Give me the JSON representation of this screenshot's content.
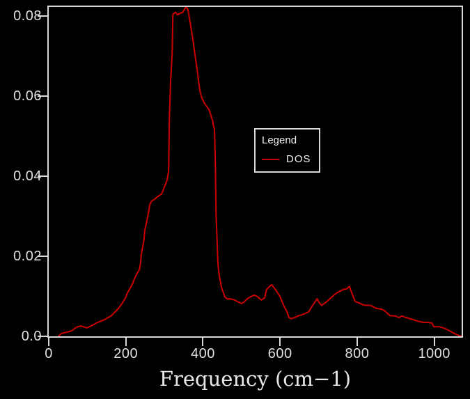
{
  "figure": {
    "background_color": "#000000",
    "frame_color": "#d9d9d9",
    "text_color": "#e0e0e0"
  },
  "chart_data": {
    "type": "line",
    "title": "",
    "xlabel": "Frequency (cm−1)",
    "ylabel": "",
    "xlim": [
      0,
      1071
    ],
    "ylim": [
      0,
      0.0823
    ],
    "grid": false,
    "x_ticks": [
      {
        "value": 0,
        "label": "0"
      },
      {
        "value": 200,
        "label": "200"
      },
      {
        "value": 400,
        "label": "400"
      },
      {
        "value": 600,
        "label": "600"
      },
      {
        "value": 800,
        "label": "800"
      },
      {
        "value": 1000,
        "label": "1000"
      }
    ],
    "y_ticks": [
      {
        "value": 0.0,
        "label": "0.0"
      },
      {
        "value": 0.02,
        "label": "0.02"
      },
      {
        "value": 0.04,
        "label": "0.04"
      },
      {
        "value": 0.06,
        "label": "0.06"
      },
      {
        "value": 0.08,
        "label": "0.08"
      }
    ],
    "legend": {
      "title": "Legend",
      "position": "center",
      "entries": [
        {
          "label": "DOS",
          "color": "#cc0000"
        }
      ]
    },
    "series": [
      {
        "name": "DOS",
        "color": "#cc0000",
        "points": [
          [
            25,
            0
          ],
          [
            33,
            0.0007
          ],
          [
            45,
            0.001
          ],
          [
            60,
            0.0014
          ],
          [
            72,
            0.0023
          ],
          [
            83,
            0.0026
          ],
          [
            90,
            0.0024
          ],
          [
            99,
            0.0021
          ],
          [
            110,
            0.0026
          ],
          [
            123,
            0.0033
          ],
          [
            135,
            0.0038
          ],
          [
            145,
            0.0042
          ],
          [
            154,
            0.0047
          ],
          [
            163,
            0.0052
          ],
          [
            172,
            0.0061
          ],
          [
            181,
            0.007
          ],
          [
            190,
            0.0082
          ],
          [
            199,
            0.0096
          ],
          [
            204,
            0.0108
          ],
          [
            211,
            0.012
          ],
          [
            217,
            0.0131
          ],
          [
            222,
            0.0143
          ],
          [
            229,
            0.0157
          ],
          [
            235,
            0.0166
          ],
          [
            238,
            0.0183
          ],
          [
            240,
            0.0204
          ],
          [
            244,
            0.0225
          ],
          [
            247,
            0.0242
          ],
          [
            249,
            0.0265
          ],
          [
            253,
            0.0282
          ],
          [
            257,
            0.03
          ],
          [
            262,
            0.0329
          ],
          [
            267,
            0.0338
          ],
          [
            275,
            0.0343
          ],
          [
            284,
            0.035
          ],
          [
            293,
            0.0356
          ],
          [
            302,
            0.0378
          ],
          [
            307,
            0.039
          ],
          [
            311,
            0.0413
          ],
          [
            313,
            0.0549
          ],
          [
            316,
            0.0636
          ],
          [
            320,
            0.0706
          ],
          [
            322,
            0.0805
          ],
          [
            329,
            0.081
          ],
          [
            334,
            0.0803
          ],
          [
            340,
            0.0807
          ],
          [
            347,
            0.0809
          ],
          [
            356,
            0.0823
          ],
          [
            361,
            0.0817
          ],
          [
            367,
            0.0783
          ],
          [
            374,
            0.0741
          ],
          [
            379,
            0.0706
          ],
          [
            385,
            0.0666
          ],
          [
            392,
            0.0614
          ],
          [
            397,
            0.0596
          ],
          [
            403,
            0.0584
          ],
          [
            416,
            0.0566
          ],
          [
            425,
            0.0539
          ],
          [
            430,
            0.0514
          ],
          [
            432,
            0.0439
          ],
          [
            434,
            0.0305
          ],
          [
            439,
            0.0178
          ],
          [
            443,
            0.0148
          ],
          [
            448,
            0.0122
          ],
          [
            457,
            0.0098
          ],
          [
            464,
            0.0093
          ],
          [
            470,
            0.0094
          ],
          [
            482,
            0.0091
          ],
          [
            493,
            0.0085
          ],
          [
            500,
            0.0082
          ],
          [
            506,
            0.0085
          ],
          [
            515,
            0.0094
          ],
          [
            524,
            0.0099
          ],
          [
            533,
            0.0103
          ],
          [
            542,
            0.0099
          ],
          [
            551,
            0.0091
          ],
          [
            560,
            0.0096
          ],
          [
            565,
            0.0117
          ],
          [
            573,
            0.0125
          ],
          [
            578,
            0.0129
          ],
          [
            584,
            0.0122
          ],
          [
            591,
            0.0113
          ],
          [
            600,
            0.0099
          ],
          [
            609,
            0.0078
          ],
          [
            618,
            0.0061
          ],
          [
            623,
            0.0047
          ],
          [
            629,
            0.0044
          ],
          [
            638,
            0.0047
          ],
          [
            650,
            0.0052
          ],
          [
            663,
            0.0056
          ],
          [
            674,
            0.0061
          ],
          [
            683,
            0.0075
          ],
          [
            690,
            0.0085
          ],
          [
            696,
            0.0094
          ],
          [
            701,
            0.0085
          ],
          [
            708,
            0.0077
          ],
          [
            719,
            0.0085
          ],
          [
            732,
            0.0096
          ],
          [
            746,
            0.0108
          ],
          [
            764,
            0.0117
          ],
          [
            773,
            0.0119
          ],
          [
            780,
            0.0125
          ],
          [
            786,
            0.0108
          ],
          [
            795,
            0.0087
          ],
          [
            800,
            0.0085
          ],
          [
            818,
            0.0078
          ],
          [
            836,
            0.0077
          ],
          [
            849,
            0.007
          ],
          [
            862,
            0.0068
          ],
          [
            871,
            0.0064
          ],
          [
            885,
            0.0052
          ],
          [
            898,
            0.0051
          ],
          [
            909,
            0.0047
          ],
          [
            916,
            0.0051
          ],
          [
            927,
            0.0047
          ],
          [
            945,
            0.0042
          ],
          [
            957,
            0.0038
          ],
          [
            970,
            0.0035
          ],
          [
            981,
            0.0035
          ],
          [
            994,
            0.0033
          ],
          [
            999,
            0.0024
          ],
          [
            1012,
            0.0024
          ],
          [
            1024,
            0.0021
          ],
          [
            1035,
            0.0016
          ],
          [
            1048,
            0.0009
          ],
          [
            1061,
            0.0003
          ],
          [
            1071,
            0
          ]
        ]
      }
    ]
  }
}
